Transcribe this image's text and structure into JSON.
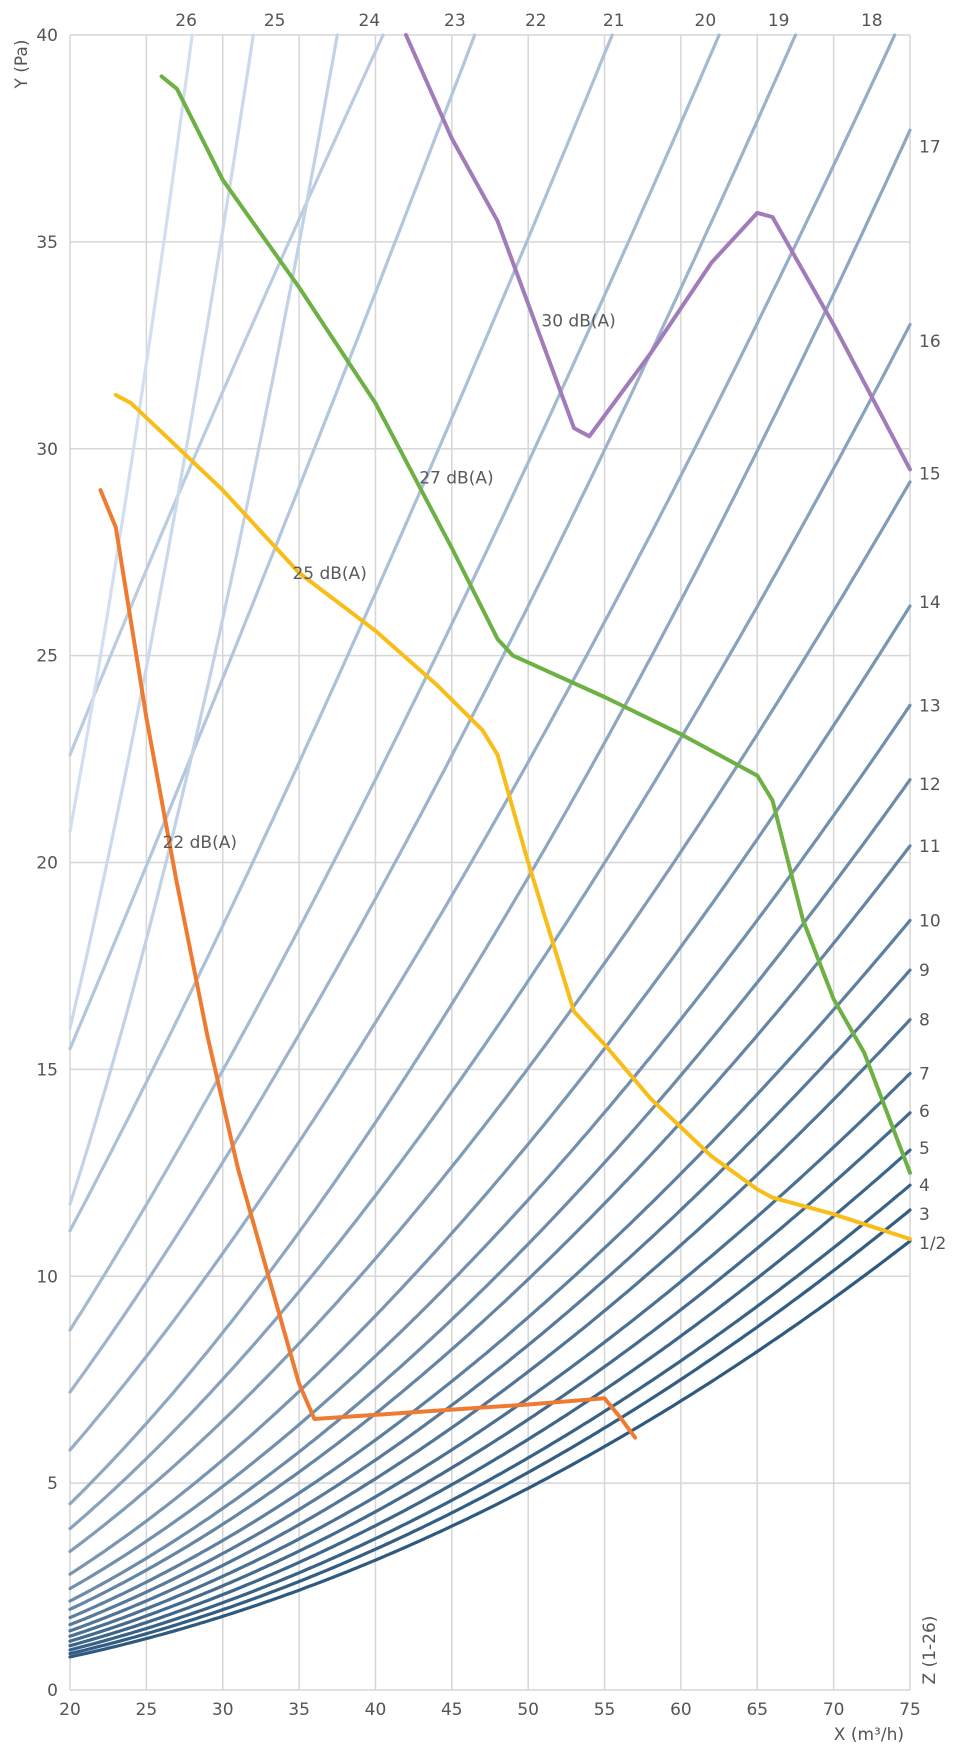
{
  "chart_data": {
    "type": "line",
    "title": "",
    "xlabel": "X (m³/h)",
    "ylabel": "Y (Pa)",
    "zlabel": "Z (1-26)",
    "xlim": [
      20,
      75
    ],
    "ylim": [
      0,
      40
    ],
    "x_ticks": [
      20,
      25,
      30,
      35,
      40,
      45,
      50,
      55,
      60,
      65,
      70,
      75
    ],
    "y_ticks": [
      0,
      5,
      10,
      15,
      20,
      25,
      30,
      35,
      40
    ],
    "grid": true,
    "curve_color_dark": "#2f5a80",
    "curve_color_light": "#d2dff0",
    "curves": [
      {
        "label": "1/2",
        "x": 20,
        "y": [
          0.8,
          10.85
        ]
      },
      {
        "label": "3",
        "y_at_20": 0.88,
        "y_at_75": 11.6
      },
      {
        "label": "4",
        "y_at_20": 0.97,
        "y_at_75": 12.2
      },
      {
        "label": "5",
        "y_at_20": 1.07,
        "y_at_75": 13.05
      },
      {
        "label": "6",
        "y_at_20": 1.18,
        "y_at_75": 13.95
      },
      {
        "label": "7",
        "y_at_20": 1.3,
        "y_at_75": 14.9
      },
      {
        "label": "8",
        "y_at_20": 1.43,
        "y_at_75": 16.2
      },
      {
        "label": "9",
        "y_at_20": 1.58,
        "y_at_75": 17.4
      },
      {
        "label": "10",
        "y_at_20": 1.75,
        "y_at_75": 18.6
      },
      {
        "label": "11",
        "y_at_20": 1.95,
        "y_at_75": 20.4
      },
      {
        "label": "12",
        "y_at_20": 2.15,
        "y_at_75": 22.0
      },
      {
        "label": "13",
        "y_at_20": 2.45,
        "y_at_75": 23.8
      },
      {
        "label": "14",
        "y_at_20": 2.8,
        "y_at_75": 26.2
      },
      {
        "label": "15",
        "y_at_20": 3.35,
        "y_at_75": 29.2
      },
      {
        "label": "16",
        "y_at_20": 3.9,
        "y_at_75": 33.0
      },
      {
        "label": "17",
        "y_at_20": 4.5,
        "y_at_75": 37.7
      },
      {
        "label": "18",
        "y_at_20": 5.8,
        "x_at_40": 74.0
      },
      {
        "label": "19",
        "y_at_20": 7.2,
        "x_at_40": 67.5
      },
      {
        "label": "20",
        "y_at_20": 8.7,
        "x_at_40": 62.5
      },
      {
        "label": "21",
        "y_at_20": 11.1,
        "x_at_40": 55.5
      },
      {
        "label": "22",
        "y_at_20": 15.5,
        "x_at_40": 46.5
      },
      {
        "label": "23",
        "y_at_20": 22.6,
        "x_at_40": 40.5
      },
      {
        "label": "24",
        "x_at_40": 37.5
      },
      {
        "label": "25",
        "x_at_40": 32.0
      },
      {
        "label": "26",
        "x_at_40": 28.0
      }
    ],
    "top_labels": [
      {
        "text": "26",
        "x": 27.6
      },
      {
        "text": "25",
        "x": 33.4
      },
      {
        "text": "24",
        "x": 39.6
      },
      {
        "text": "23",
        "x": 45.2
      },
      {
        "text": "22",
        "x": 50.5
      },
      {
        "text": "21",
        "x": 55.6
      },
      {
        "text": "20",
        "x": 61.6
      },
      {
        "text": "19",
        "x": 66.4
      },
      {
        "text": "18",
        "x": 72.5
      }
    ],
    "right_labels": [
      {
        "text": "17",
        "y": 37.3
      },
      {
        "text": "16",
        "y": 32.6
      },
      {
        "text": "15",
        "y": 29.4
      },
      {
        "text": "14",
        "y": 26.3
      },
      {
        "text": "13",
        "y": 23.8
      },
      {
        "text": "12",
        "y": 21.9
      },
      {
        "text": "11",
        "y": 20.4
      },
      {
        "text": "10",
        "y": 18.6
      },
      {
        "text": "9",
        "y": 17.4
      },
      {
        "text": "8",
        "y": 16.2
      },
      {
        "text": "7",
        "y": 14.9
      },
      {
        "text": "6",
        "y": 14.0
      },
      {
        "text": "5",
        "y": 13.1
      },
      {
        "text": "4",
        "y": 12.2
      },
      {
        "text": "3",
        "y": 11.5
      },
      {
        "text": "1/2",
        "y": 10.8
      }
    ],
    "series": [
      {
        "name": "22 dB(A)",
        "color": "#ef7b32",
        "label_at": [
          28.5,
          20.5
        ],
        "points": [
          [
            22,
            29.0
          ],
          [
            23,
            28.1
          ],
          [
            25,
            23.5
          ],
          [
            27,
            19.5
          ],
          [
            29,
            15.8
          ],
          [
            31,
            12.6
          ],
          [
            33,
            10.0
          ],
          [
            35,
            7.4
          ],
          [
            36,
            6.55
          ],
          [
            42,
            6.7
          ],
          [
            50,
            6.9
          ],
          [
            55,
            7.05
          ],
          [
            56,
            6.6
          ],
          [
            57,
            6.1
          ]
        ]
      },
      {
        "name": "25 dB(A)",
        "color": "#f9bd1a",
        "label_at": [
          37,
          27.0
        ],
        "points": [
          [
            23,
            31.3
          ],
          [
            24,
            31.1
          ],
          [
            30,
            29.0
          ],
          [
            35,
            27.0
          ],
          [
            40,
            25.6
          ],
          [
            44,
            24.3
          ],
          [
            47,
            23.2
          ],
          [
            48,
            22.6
          ],
          [
            50,
            20.0
          ],
          [
            53,
            16.4
          ],
          [
            55,
            15.6
          ],
          [
            58,
            14.3
          ],
          [
            62,
            12.9
          ],
          [
            65,
            12.1
          ],
          [
            66,
            11.9
          ],
          [
            70,
            11.5
          ],
          [
            75,
            10.9
          ]
        ]
      },
      {
        "name": "27 dB(A)",
        "color": "#6db044",
        "label_at": [
          45.3,
          29.3
        ],
        "points": [
          [
            26,
            39.0
          ],
          [
            27,
            38.7
          ],
          [
            30,
            36.5
          ],
          [
            35,
            33.9
          ],
          [
            40,
            31.1
          ],
          [
            45,
            27.6
          ],
          [
            48,
            25.4
          ],
          [
            49,
            25.0
          ],
          [
            55,
            24.0
          ],
          [
            60,
            23.1
          ],
          [
            65,
            22.1
          ],
          [
            66,
            21.5
          ],
          [
            68,
            18.6
          ],
          [
            70,
            16.7
          ],
          [
            72,
            15.4
          ],
          [
            75,
            12.5
          ]
        ]
      },
      {
        "name": "30 dB(A)",
        "color": "#a27cba",
        "label_at": [
          53.3,
          33.1
        ],
        "points": [
          [
            42,
            40.0
          ],
          [
            45,
            37.5
          ],
          [
            48,
            35.5
          ],
          [
            51,
            32.5
          ],
          [
            53,
            30.5
          ],
          [
            54,
            30.3
          ],
          [
            58,
            32.3
          ],
          [
            62,
            34.5
          ],
          [
            65,
            35.7
          ],
          [
            66,
            35.6
          ],
          [
            70,
            33.0
          ],
          [
            75,
            29.5
          ]
        ]
      }
    ]
  }
}
